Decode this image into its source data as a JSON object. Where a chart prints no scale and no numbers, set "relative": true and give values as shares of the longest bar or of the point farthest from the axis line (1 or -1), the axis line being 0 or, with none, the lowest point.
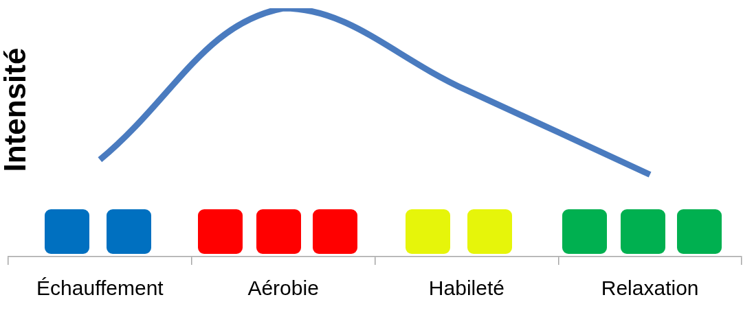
{
  "chart_data": {
    "type": "line",
    "ylabel": "Intensité",
    "relative": true,
    "categories": [
      "Échauffement",
      "Aérobie",
      "Habileté",
      "Relaxation"
    ],
    "series": [
      {
        "color": "#4a7bbf",
        "values": [
          0.39,
          1,
          0.67,
          0.33
        ]
      }
    ],
    "marker": "none",
    "line_style": "solid",
    "legend": false,
    "grid": false
  }
}
